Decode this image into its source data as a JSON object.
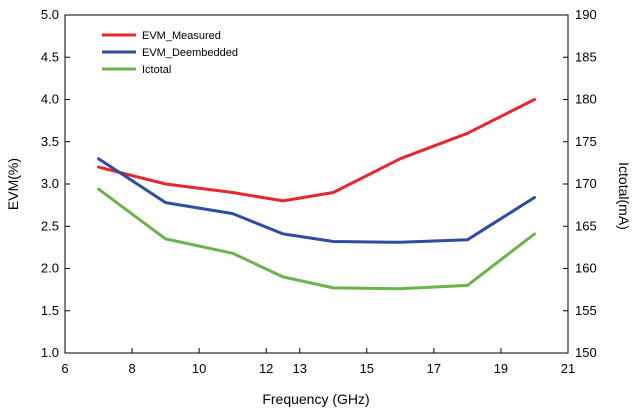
{
  "chart_data": {
    "type": "line",
    "title": "",
    "xlabel": "Frequency (GHz)",
    "ylabel": "EVM(%)",
    "y2label": "Ictotal(mA)",
    "x_tick_labels": [
      "6",
      "8",
      "10",
      "12",
      "13",
      "15",
      "17",
      "19",
      "21"
    ],
    "x_tick_positions": [
      6,
      8,
      10,
      12,
      13,
      15,
      17,
      19,
      21
    ],
    "ylim": [
      1.0,
      5.0
    ],
    "y_ticks": [
      "1.0",
      "1.5",
      "2.0",
      "2.5",
      "3.0",
      "3.5",
      "4.0",
      "4.5",
      "5.0"
    ],
    "y2lim": [
      150,
      190
    ],
    "y2_ticks": [
      "150",
      "155",
      "160",
      "165",
      "170",
      "175",
      "180",
      "185",
      "190"
    ],
    "grid": false,
    "legend_position": "top-left",
    "series": [
      {
        "name": "EVM_Measured",
        "color": "#e8272a",
        "axis": "left",
        "x": [
          7,
          9,
          11,
          12.5,
          14,
          16,
          18,
          20
        ],
        "y": [
          3.2,
          3.0,
          2.9,
          2.8,
          2.9,
          3.3,
          3.6,
          4.0
        ]
      },
      {
        "name": "EVM_Deembedded",
        "color": "#2e4da0",
        "axis": "left",
        "x": [
          7,
          9,
          11,
          12.5,
          14,
          16,
          18,
          20
        ],
        "y": [
          3.3,
          2.78,
          2.65,
          2.41,
          2.32,
          2.31,
          2.34,
          2.84
        ]
      },
      {
        "name": "Ictotal",
        "color": "#6ab44a",
        "axis": "right",
        "x": [
          7,
          9,
          11,
          12.5,
          14,
          16,
          18,
          20
        ],
        "y": [
          169.4,
          163.5,
          161.8,
          159.0,
          157.7,
          157.6,
          158.0,
          164.1
        ]
      }
    ]
  }
}
